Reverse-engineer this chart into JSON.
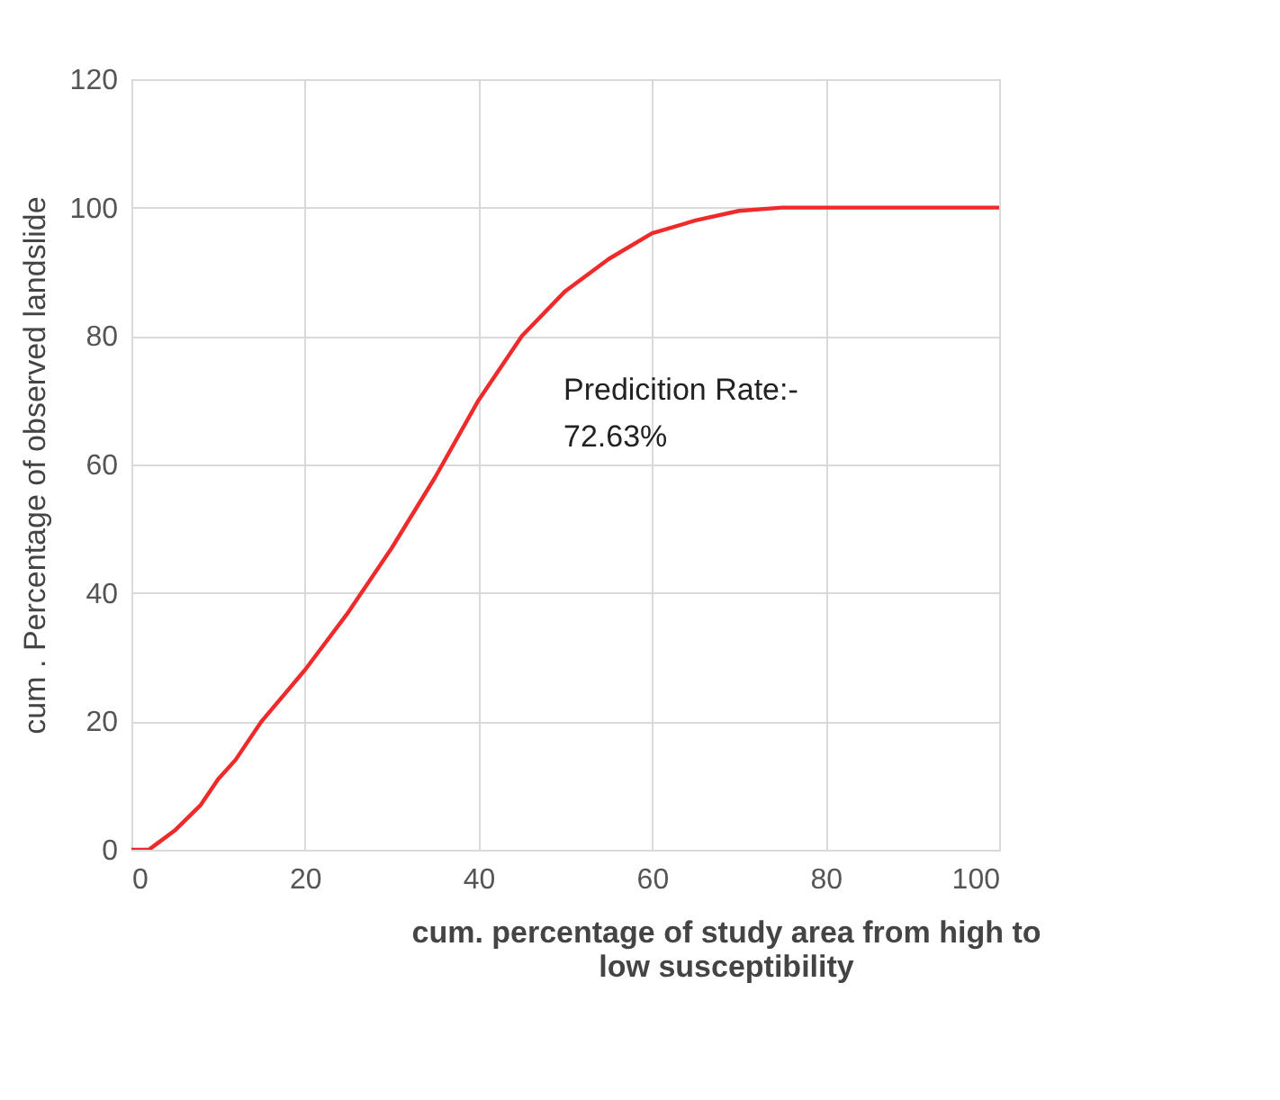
{
  "chart_data": {
    "type": "line",
    "xlabel": "cum. percentage of study area from high to low susceptibility",
    "ylabel": "cum . Percentage of  observed landslide",
    "x": [
      0,
      2,
      3,
      5,
      8,
      10,
      12,
      15,
      20,
      25,
      30,
      35,
      40,
      45,
      50,
      55,
      60,
      65,
      70,
      75,
      100
    ],
    "series": [
      {
        "color": "#ee2a2a",
        "values": [
          0,
          0,
          1,
          3,
          7,
          11,
          14,
          20,
          28,
          37,
          47,
          58,
          70,
          80,
          87,
          92,
          96,
          98,
          99.5,
          100,
          100
        ]
      }
    ],
    "xlim": [
      0,
      100
    ],
    "xticks": [
      0,
      20,
      40,
      60,
      80,
      100
    ],
    "ylim": [
      0,
      120
    ],
    "yticks": [
      0,
      20,
      40,
      60,
      80,
      100,
      120
    ],
    "grid": true,
    "annotations": [
      "Predicition Rate:-\n72.63%"
    ]
  }
}
